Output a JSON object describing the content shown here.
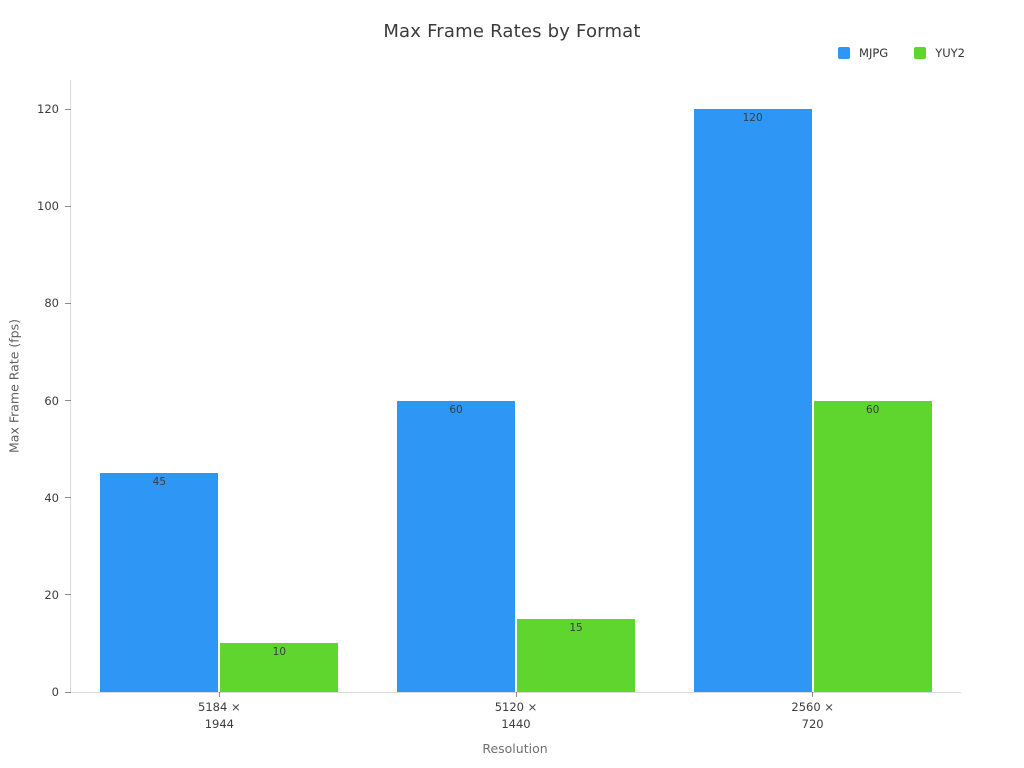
{
  "chart_data": {
    "type": "bar",
    "title": "Max Frame Rates by Format",
    "xlabel": "Resolution",
    "ylabel": "Max Frame Rate (fps)",
    "categories": [
      "5184 × 1944",
      "5120 × 1440",
      "2560 × 720"
    ],
    "category_labels": [
      [
        "5184 ×",
        "1944"
      ],
      [
        "5120 ×",
        "1440"
      ],
      [
        "2560 ×",
        "720"
      ]
    ],
    "series": [
      {
        "name": "MJPG",
        "color": "#2e96f5",
        "values": [
          45,
          60,
          120
        ]
      },
      {
        "name": "YUY2",
        "color": "#5fd62e",
        "values": [
          10,
          15,
          60
        ]
      }
    ],
    "yticks": [
      0,
      20,
      40,
      60,
      80,
      100,
      120
    ],
    "ylim": [
      0,
      126
    ],
    "bar_value_labels": [
      [
        "45",
        "60",
        "120"
      ],
      [
        "10",
        "15",
        "60"
      ]
    ],
    "legend_position": "top-right",
    "grid": false
  }
}
